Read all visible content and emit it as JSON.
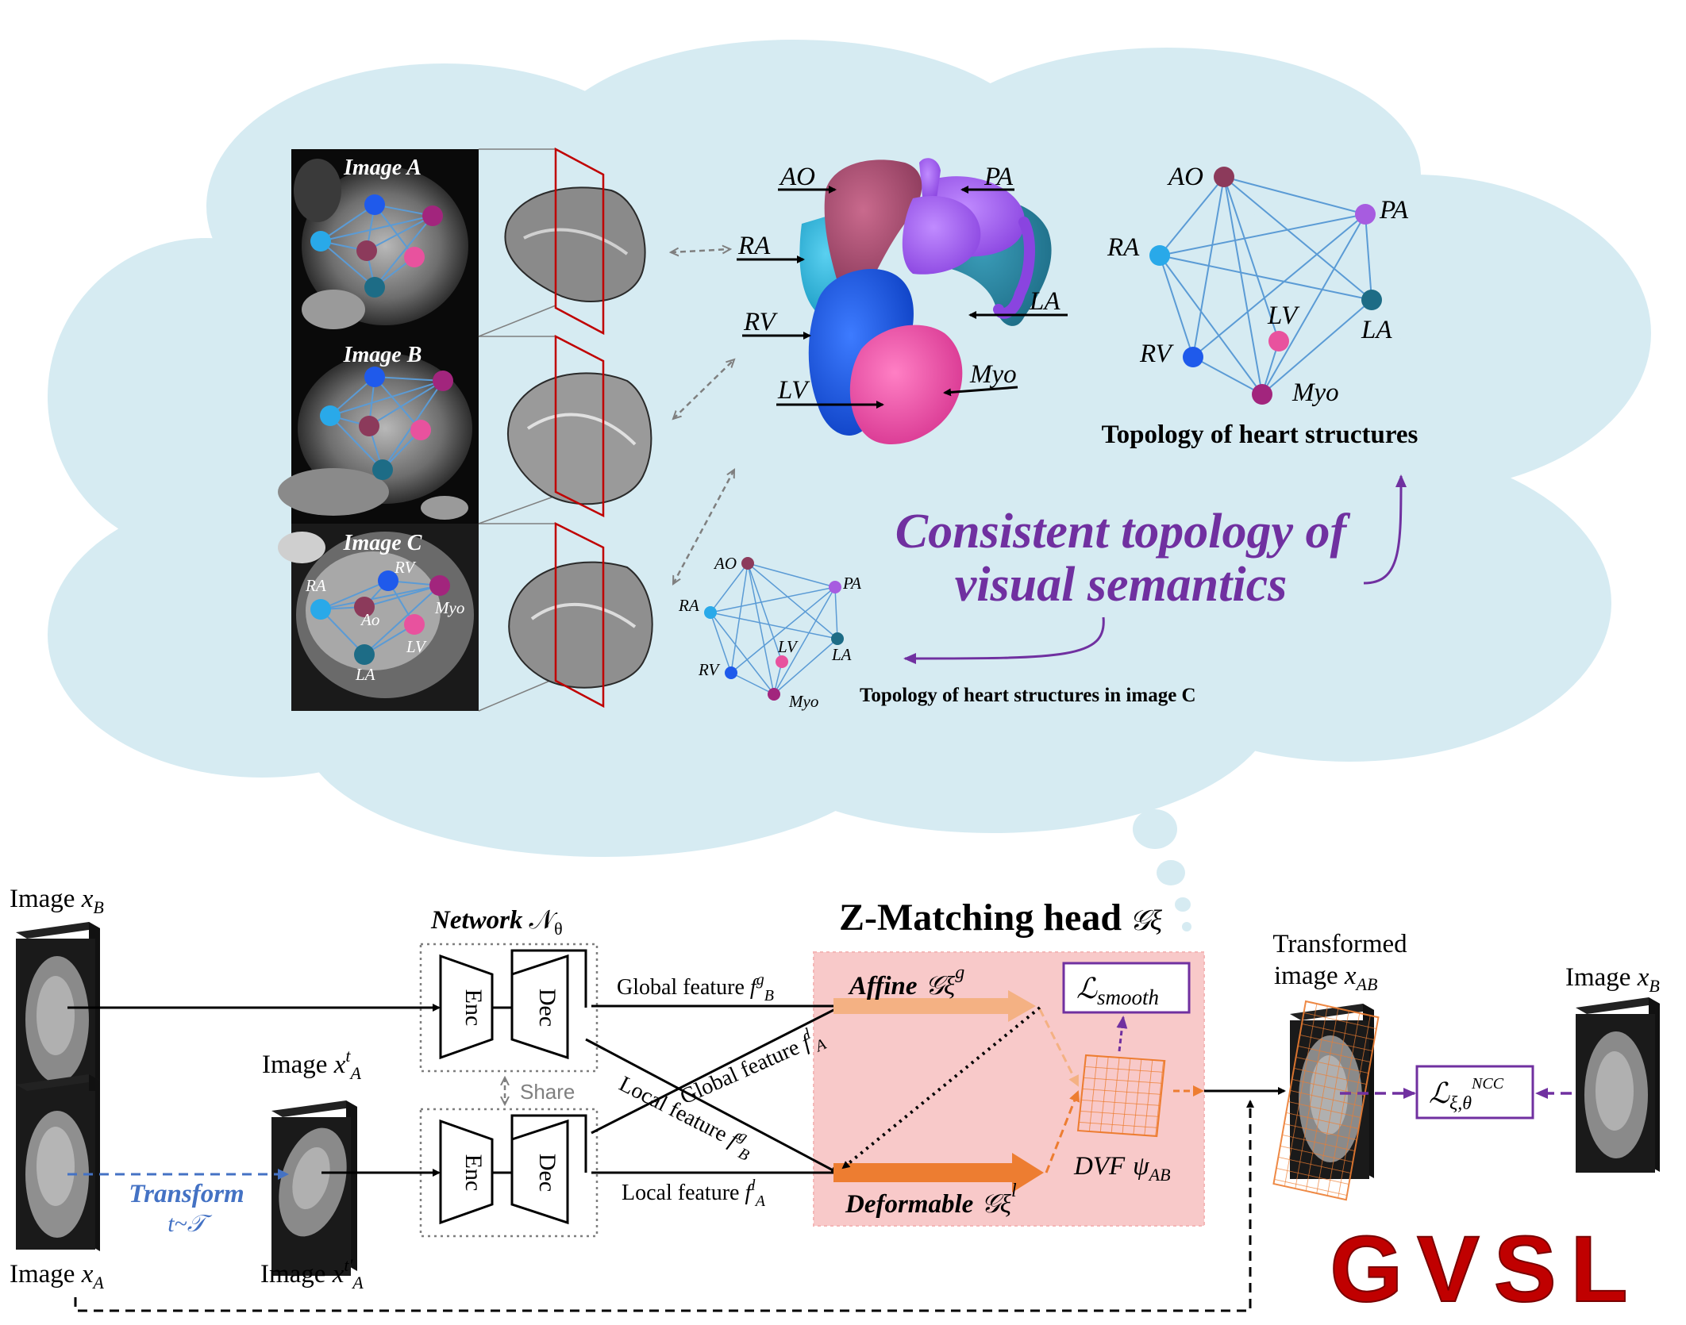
{
  "cloud": {
    "images": [
      {
        "title": "Image A"
      },
      {
        "title": "Image B"
      },
      {
        "title": "Image C",
        "labels": [
          "RA",
          "RV",
          "Ao",
          "Myo",
          "LV",
          "LA"
        ]
      }
    ],
    "heart_labels": {
      "ao": "AO",
      "pa": "PA",
      "ra": "RA",
      "la": "LA",
      "rv": "RV",
      "myo": "Myo",
      "lv": "LV"
    },
    "topology_big": {
      "caption": "Topology of heart structures",
      "nodes": [
        "AO",
        "PA",
        "RA",
        "LA",
        "LV",
        "RV",
        "Myo"
      ]
    },
    "topology_small": {
      "caption": "Topology of heart structures in image C",
      "nodes": [
        "AO",
        "PA",
        "RA",
        "LA",
        "LV",
        "RV",
        "Myo"
      ]
    },
    "consistent_text": [
      "Consistent topology of",
      "visual semantics"
    ]
  },
  "pipeline": {
    "image_xb_left": {
      "prefix": "Image ",
      "var": "x",
      "sub": "B"
    },
    "image_xa": {
      "prefix": "Image ",
      "var": "x",
      "sub": "A"
    },
    "image_xta": {
      "prefix": "Image ",
      "var": "x",
      "sup": "t",
      "sub": "A"
    },
    "image_xtpa": {
      "prefix": "Image ",
      "var": "x",
      "sup": "t′",
      "sub": "A"
    },
    "transform": [
      "Transform",
      "t~𝒯"
    ],
    "network": {
      "title": "Network",
      "symbol": "𝒩",
      "sub": "θ",
      "enc": "Enc",
      "dec": "Dec",
      "share": "Share"
    },
    "features": {
      "global_b": {
        "text": "Global feature ",
        "var": "f",
        "sup": "g",
        "sub": "B"
      },
      "global_a": {
        "text": "Global feature ",
        "var": "f",
        "sup": "l",
        "sub": "A"
      },
      "local_b": {
        "text": "Local feature ",
        "var": "f",
        "sup": "g",
        "sub": "B"
      },
      "local_a": {
        "text": "Local feature ",
        "var": "f",
        "sup": "l",
        "sub": "A"
      }
    },
    "zhead": {
      "title": "Z-Matching head",
      "symbol": "𝒢ξ",
      "affine": "Affine",
      "affine_sym": "𝒢ξ",
      "affine_sup": "g",
      "deformable": "Deformable",
      "deformable_sym": "𝒢ξ",
      "deformable_sup": "l",
      "smooth": "ℒ",
      "smooth_sub": "smooth",
      "dvf": "DVF",
      "dvf_sym": "ψ",
      "dvf_sub": "AB"
    },
    "transformed": [
      "Transformed",
      "image "
    ],
    "transformed_var": {
      "var": "x",
      "sub": "AB"
    },
    "image_xb_right": {
      "prefix": "Image ",
      "var": "x",
      "sub": "B"
    },
    "ncc": {
      "sym": "ℒ",
      "sub": "ξ,θ",
      "sup": "NCC"
    }
  },
  "logo": "GVSL",
  "colors": {
    "cloud": "#d6ebf2",
    "purple": "#7030a0",
    "blue_text": "#4472c4",
    "affine_arrow": "#f4b183",
    "deformable_arrow": "#ed7d31",
    "zhead_bg": "#f8c9c9",
    "logo_red": "#c00000",
    "edge_blue": "#5b9bd5"
  }
}
